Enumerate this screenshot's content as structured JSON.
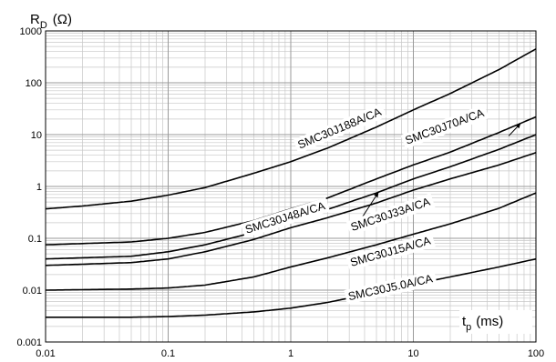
{
  "chart_data": {
    "type": "line",
    "x_scale": "log",
    "y_scale": "log",
    "xlim": [
      0.01,
      100
    ],
    "ylim": [
      0.001,
      1000
    ],
    "grid": true,
    "xlabel": {
      "main": "t",
      "sub": "p",
      "unit": "(ms)"
    },
    "ylabel": {
      "main": "R",
      "sub": "D",
      "unit": "(Ω)"
    },
    "x_ticks": [
      "0.01",
      "0.1",
      "1",
      "10",
      "100"
    ],
    "y_ticks": [
      "0.001",
      "0.01",
      "0.1",
      "1",
      "10",
      "100",
      "1000"
    ],
    "series": [
      {
        "name": "SMC30J188A/CA",
        "x": [
          0.01,
          0.02,
          0.05,
          0.1,
          0.2,
          0.5,
          1,
          2,
          5,
          10,
          20,
          50,
          100
        ],
        "y": [
          0.37,
          0.42,
          0.52,
          0.68,
          0.95,
          1.8,
          3.0,
          5.5,
          14,
          30,
          62,
          180,
          450
        ]
      },
      {
        "name": "SMC30J70A/CA",
        "x": [
          0.01,
          0.05,
          0.1,
          0.2,
          0.5,
          1,
          2,
          5,
          10,
          20,
          50,
          100
        ],
        "y": [
          0.075,
          0.085,
          0.1,
          0.13,
          0.22,
          0.37,
          0.6,
          1.4,
          2.6,
          4.6,
          11,
          22
        ]
      },
      {
        "name": "SMC30J48A/CA",
        "x": [
          0.01,
          0.05,
          0.1,
          0.2,
          0.5,
          1,
          2,
          5,
          10,
          20,
          50,
          100
        ],
        "y": [
          0.04,
          0.045,
          0.055,
          0.075,
          0.13,
          0.22,
          0.36,
          0.75,
          1.4,
          2.4,
          5.2,
          10
        ]
      },
      {
        "name": "SMC30J33A/CA",
        "x": [
          0.01,
          0.05,
          0.1,
          0.2,
          0.5,
          1,
          2,
          5,
          10,
          20,
          50,
          100
        ],
        "y": [
          0.03,
          0.034,
          0.04,
          0.055,
          0.095,
          0.16,
          0.25,
          0.48,
          0.85,
          1.4,
          2.6,
          4.5
        ]
      },
      {
        "name": "SMC30J15A/CA",
        "x": [
          0.01,
          0.05,
          0.1,
          0.2,
          0.5,
          1,
          2,
          5,
          10,
          20,
          50,
          100
        ],
        "y": [
          0.01,
          0.0105,
          0.011,
          0.0125,
          0.018,
          0.028,
          0.042,
          0.075,
          0.12,
          0.19,
          0.38,
          0.75
        ]
      },
      {
        "name": "SMC30J5.0A/CA",
        "x": [
          0.01,
          0.05,
          0.1,
          0.2,
          0.5,
          1,
          2,
          5,
          10,
          20,
          50,
          100
        ],
        "y": [
          0.003,
          0.003,
          0.0031,
          0.0033,
          0.0038,
          0.0045,
          0.0058,
          0.009,
          0.013,
          0.018,
          0.028,
          0.04
        ]
      }
    ]
  }
}
